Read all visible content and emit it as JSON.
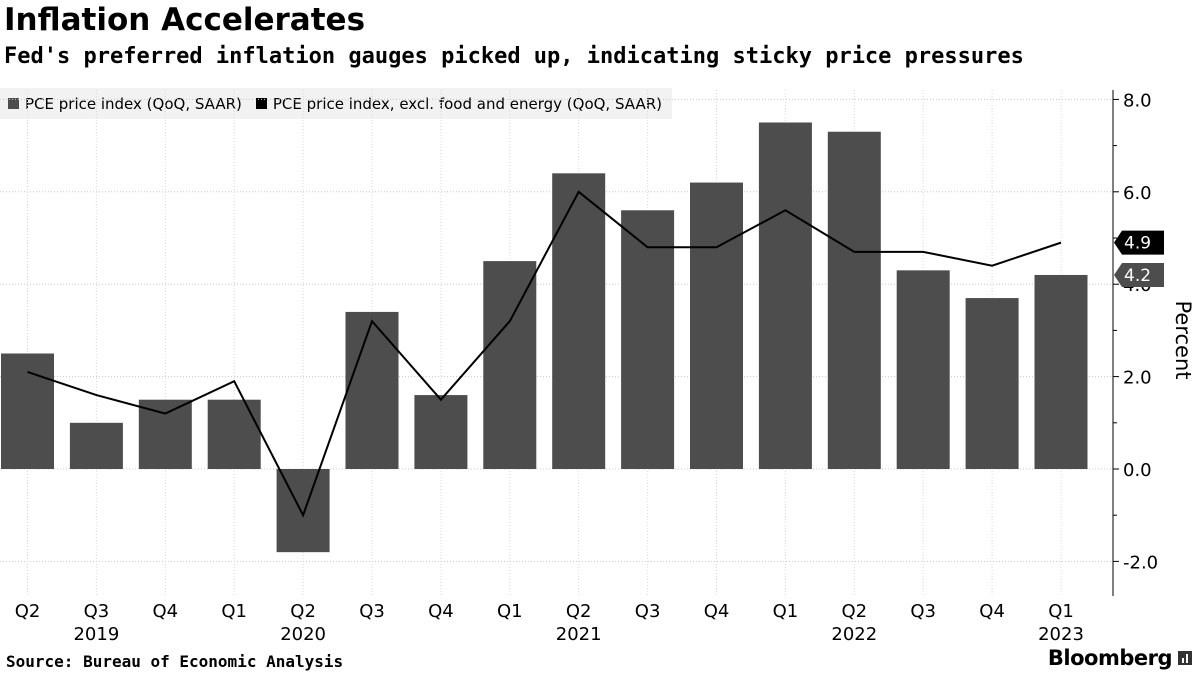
{
  "chart_data": {
    "type": "bar",
    "title": "Inflation Accelerates",
    "subtitle": "Fed's preferred inflation gauges picked up, indicating sticky price pressures",
    "categories": [
      "Q2",
      "Q3",
      "Q4",
      "Q1",
      "Q2",
      "Q3",
      "Q4",
      "Q1",
      "Q2",
      "Q3",
      "Q4",
      "Q1",
      "Q2",
      "Q3",
      "Q4",
      "Q1"
    ],
    "year_labels": [
      {
        "label": "2019",
        "index": 1
      },
      {
        "label": "2020",
        "index": 4
      },
      {
        "label": "2021",
        "index": 8
      },
      {
        "label": "2022",
        "index": 12
      },
      {
        "label": "2023",
        "index": 15
      }
    ],
    "series": [
      {
        "name": "PCE price index (QoQ, SAAR)",
        "type": "bar",
        "color": "#4d4d4d",
        "values": [
          2.5,
          1.0,
          1.5,
          1.5,
          -1.8,
          3.4,
          1.6,
          4.5,
          6.4,
          5.6,
          6.2,
          7.5,
          7.3,
          4.3,
          3.7,
          4.2
        ]
      },
      {
        "name": "PCE price index, excl. food and energy (QoQ, SAAR)",
        "type": "line",
        "color": "#000000",
        "values": [
          2.1,
          1.6,
          1.2,
          1.9,
          -1.0,
          3.2,
          1.5,
          3.2,
          6.0,
          4.8,
          4.8,
          5.6,
          4.7,
          4.7,
          4.4,
          4.9
        ]
      }
    ],
    "ylabel": "Percent",
    "ylim": [
      -2.8,
      8.4
    ],
    "yticks": [
      8.0,
      6.0,
      4.0,
      2.0,
      0.0,
      -2.0
    ],
    "ytick_labels": [
      "8.0",
      "6.0",
      "4.0",
      "2.0",
      "0.0",
      "-2.0"
    ],
    "last_value_flags": [
      {
        "label": "4.9",
        "value": 4.9,
        "color": "#000000"
      },
      {
        "label": "4.2",
        "value": 4.2,
        "color": "#4d4d4d"
      }
    ],
    "grid": true,
    "legend_position": "top-left"
  },
  "source": "Source: Bureau of Economic Analysis",
  "brand": "Bloomberg"
}
